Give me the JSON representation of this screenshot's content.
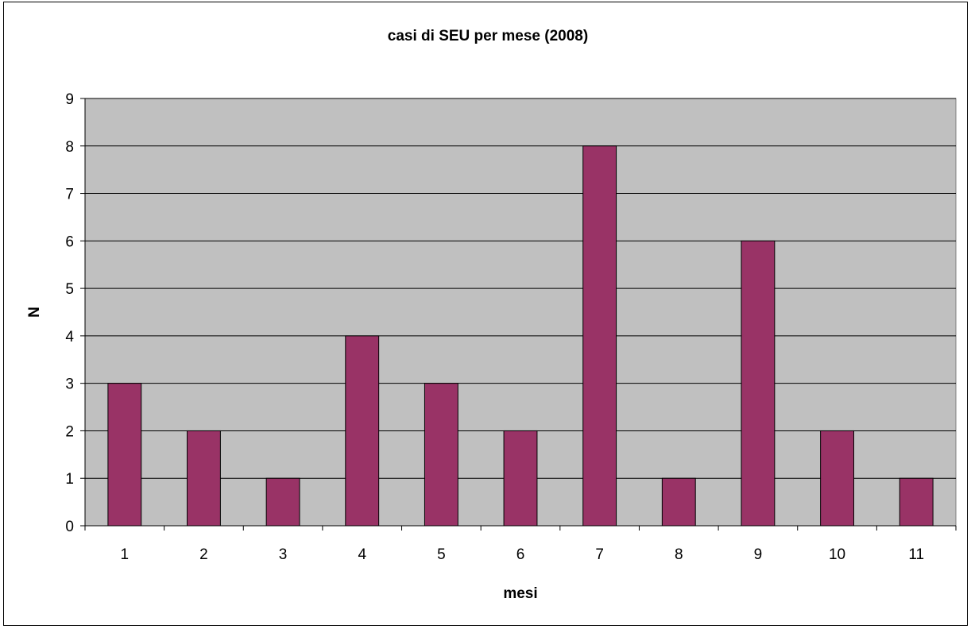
{
  "chart_data": {
    "type": "bar",
    "title": "casi di SEU per mese (2008)",
    "xlabel": "mesi",
    "ylabel": "N",
    "categories": [
      "1",
      "2",
      "3",
      "4",
      "5",
      "6",
      "7",
      "8",
      "9",
      "10",
      "11"
    ],
    "values": [
      3,
      2,
      1,
      4,
      3,
      2,
      8,
      1,
      6,
      2,
      1
    ],
    "ylim": [
      0,
      9
    ],
    "yticks": [
      "0",
      "1",
      "2",
      "3",
      "4",
      "5",
      "6",
      "7",
      "8",
      "9"
    ],
    "grid": true,
    "legend": "none",
    "colors": {
      "bar": "#993366",
      "plot_background": "#c0c0c0",
      "grid": "#000000"
    }
  }
}
